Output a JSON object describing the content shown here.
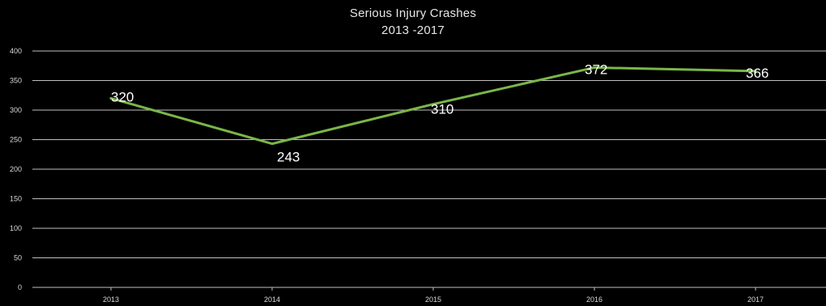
{
  "chart_data": {
    "type": "line",
    "title": "Serious Injury Crashes",
    "subtitle": "2013 -2017",
    "categories": [
      "2013",
      "2014",
      "2015",
      "2016",
      "2017"
    ],
    "series": [
      {
        "values": [
          320,
          243,
          310,
          372,
          366
        ]
      }
    ],
    "data_labels": [
      "320",
      "243",
      "310",
      "372",
      "366"
    ],
    "ylim": [
      0,
      400
    ],
    "yticks": [
      0,
      50,
      100,
      150,
      200,
      250,
      300,
      350,
      400
    ],
    "xlabel": "",
    "ylabel": "",
    "grid": true,
    "legend": "none",
    "colors": {
      "background": "#000000",
      "line": "#7ab648",
      "grid": "#bfbfbf",
      "text": "#e6e6e6"
    }
  }
}
